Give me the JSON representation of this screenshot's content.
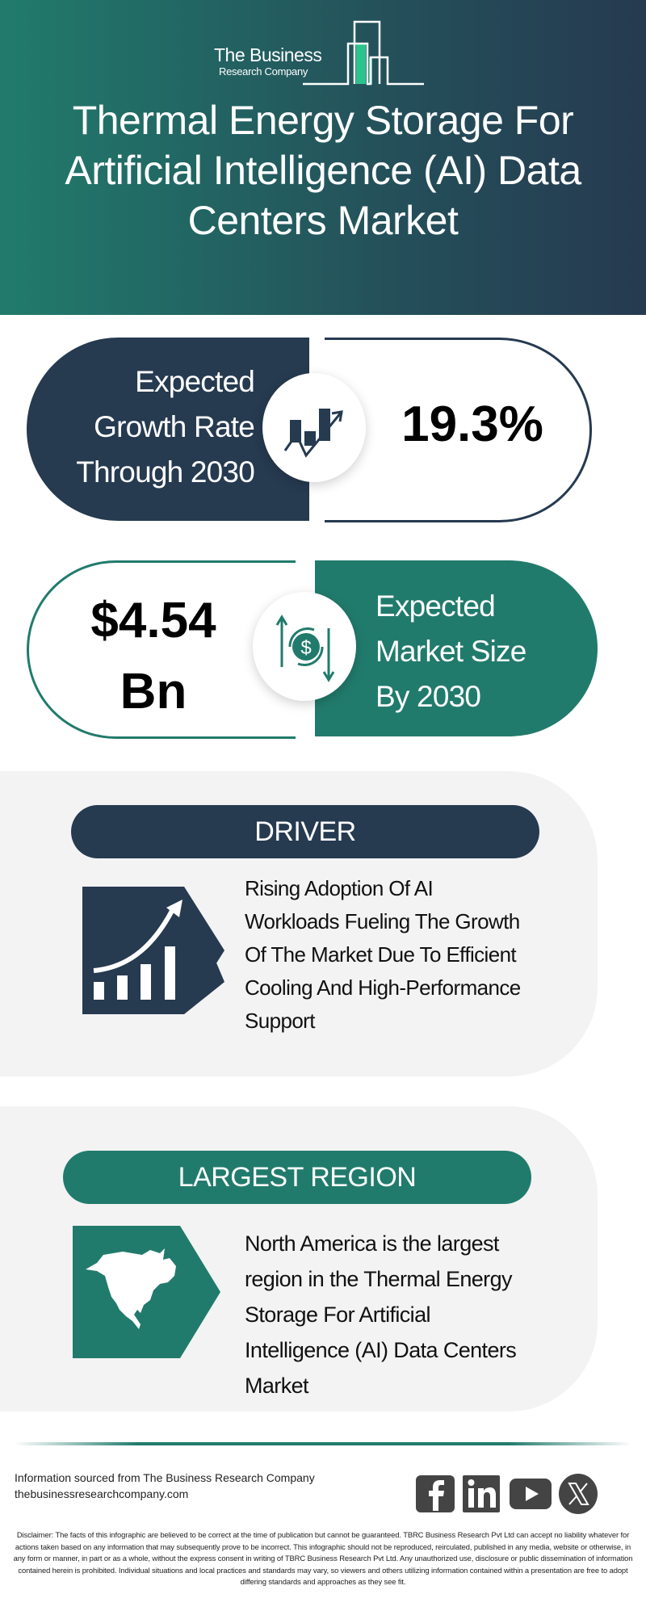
{
  "brand": {
    "logo_line1": "The Business",
    "logo_line2": "Research Company"
  },
  "header": {
    "title_lines": [
      "Thermal Energy Storage For",
      "Artificial Intelligence (AI) Data",
      "Centers Market"
    ]
  },
  "growth": {
    "label_lines": [
      "Expected",
      "Growth Rate",
      "Through 2030"
    ],
    "value": "19.3%",
    "icon": "growth-chart-icon"
  },
  "market_size": {
    "value_lines": [
      "$4.54",
      "Bn"
    ],
    "label_lines": [
      "Expected",
      "Market Size",
      "By 2030"
    ],
    "icon": "dollar-exchange-icon"
  },
  "driver": {
    "heading": "DRIVER",
    "text_lines": [
      "Rising Adoption Of AI",
      "Workloads Fueling The Growth",
      "Of The Market Due To Efficient",
      "Cooling And High-Performance",
      "Support"
    ],
    "icon": "rising-bar-chart-icon"
  },
  "region": {
    "heading": "LARGEST REGION",
    "text_lines": [
      "North America is the largest",
      "region in the Thermal Energy",
      "Storage For Artificial",
      "Intelligence (AI) Data Centers",
      "Market"
    ],
    "icon": "north-america-map-icon"
  },
  "footer": {
    "source_line": "Information sourced from The Business Research Company",
    "website": "thebusinessresearchcompany.com",
    "social_icons": [
      "facebook-icon",
      "linkedin-icon",
      "youtube-icon",
      "x-icon"
    ],
    "disclaimer": "Disclaimer: The facts of this infographic are believed to be correct at the time of publication but cannot be guaranteed. TBRC Business Research Pvt Ltd can accept no liability whatever for actions taken based on any information that may subsequently prove to be incorrect. This infographic should not be reproduced, reirculated, published in any media, website or otherwise, in any form or manner, in part or as a whole, without the express consent in writing of TBRC Business Research Pvt Ltd. Any unauthorized use, disclosure or public dissemination of information contained herein is prohibited. Individual situations and local practices and standards may vary, so viewers and others utilizing information contained within a presentation are free to adopt differing standards and approaches as they see fit."
  },
  "colors": {
    "navy": "#263a50",
    "teal": "#217b6c",
    "panel_grey": "#f3f3f3",
    "logo_accent": "#2bc38e"
  }
}
